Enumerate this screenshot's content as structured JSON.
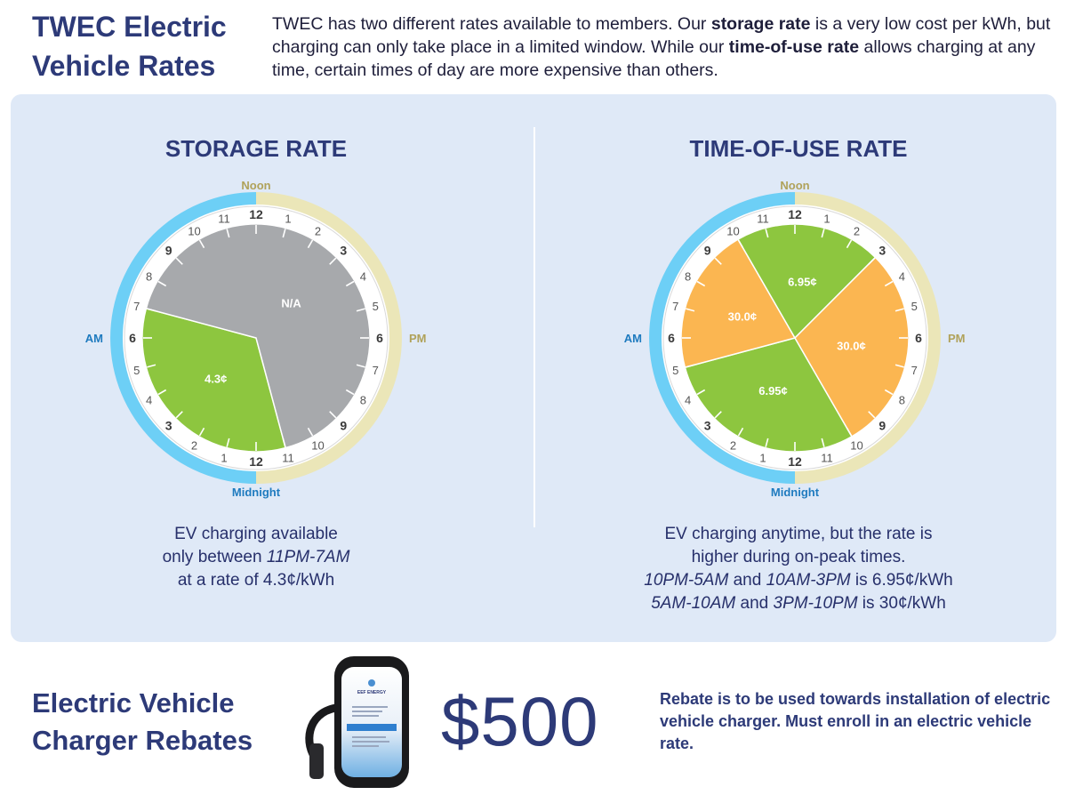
{
  "header": {
    "title_line1": "TWEC Electric",
    "title_line2": "Vehicle Rates",
    "intro": {
      "part1": "TWEC has two different rates available to members. Our ",
      "bold1": "storage rate",
      "part2": " is a very low cost per kWh, but charging can only take place in a limited window. While our ",
      "bold2": "time-of-use rate",
      "part3": " allows charging at any time, certain times of day are more expensive than others."
    }
  },
  "clock_labels": {
    "top": "Noon",
    "bottom": "Midnight",
    "left": "AM",
    "right": "PM",
    "numbers": [
      "12",
      "1",
      "2",
      "3",
      "4",
      "5",
      "6",
      "7",
      "8",
      "9",
      "10",
      "11",
      "12",
      "1",
      "2",
      "3",
      "4",
      "5",
      "6",
      "7",
      "8",
      "9",
      "10",
      "11"
    ]
  },
  "storage_rate": {
    "heading": "STORAGE RATE",
    "segments": [
      {
        "start_hour": 23,
        "end_hour": 7,
        "label": "4.3¢",
        "color": "#8dc63f"
      },
      {
        "start_hour": 7,
        "end_hour": 23,
        "label": "N/A",
        "color": "#a7a9ac"
      }
    ],
    "desc_line1": "EV charging available",
    "desc_line2_prefix": "only between ",
    "desc_line2_italic": "11PM-7AM",
    "desc_line3": "at a rate of 4.3¢/kWh"
  },
  "time_of_use_rate": {
    "heading": "TIME-OF-USE RATE",
    "segments": [
      {
        "start_hour": 22,
        "end_hour": 5,
        "label": "6.95¢",
        "color": "#8dc63f"
      },
      {
        "start_hour": 5,
        "end_hour": 10,
        "label": "30.0¢",
        "color": "#fbb651"
      },
      {
        "start_hour": 10,
        "end_hour": 15,
        "label": "6.95¢",
        "color": "#8dc63f"
      },
      {
        "start_hour": 15,
        "end_hour": 22,
        "label": "30.0¢",
        "color": "#fbb651"
      }
    ],
    "desc_line1": "EV charging anytime, but the rate is",
    "desc_line2": "higher during on-peak times.",
    "desc_line3_italic1": "10PM-5AM",
    "desc_line3_and": " and ",
    "desc_line3_italic2": "10AM-3PM",
    "desc_line3_suffix": " is 6.95¢/kWh",
    "desc_line4_italic1": "5AM-10AM",
    "desc_line4_and": " and ",
    "desc_line4_italic2": "3PM-10PM",
    "desc_line4_suffix": " is 30¢/kWh"
  },
  "rebate": {
    "title_line1": "Electric Vehicle",
    "title_line2": "Charger Rebates",
    "amount": "$500",
    "description": "Rebate is to be used towards installation of electric vehicle charger. Must enroll in an electric vehicle rate.",
    "charger_brand": "EEF ENERGY"
  },
  "colors": {
    "am_ring": "#6dcff6",
    "pm_ring": "#ebe6b8",
    "noon_label": "#b0a25a",
    "midnight_label": "#1f7bbf",
    "heading": "#2d3a78"
  }
}
